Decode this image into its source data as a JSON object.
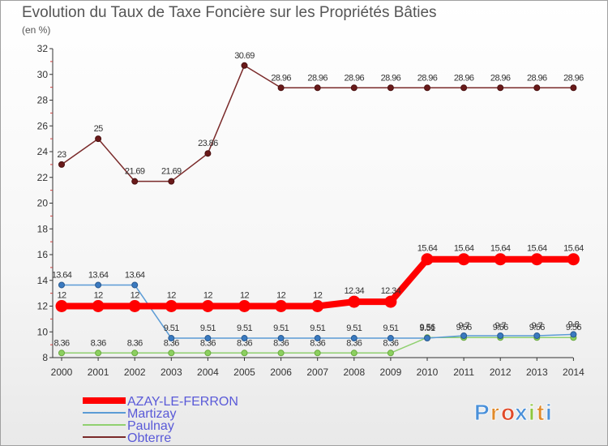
{
  "chart_data": {
    "type": "line",
    "title": "Evolution du Taux de Taxe Foncière sur les Propriétés Bâties",
    "subtitle": "(en %)",
    "xlabel": "",
    "ylabel": "",
    "ylim": [
      8,
      32
    ],
    "yticks": [
      "8",
      "10",
      "12",
      "14",
      "16",
      "18",
      "20",
      "22",
      "24",
      "26",
      "28",
      "30",
      "32"
    ],
    "grid": false,
    "legend_position": "bottom-left",
    "categories": [
      "2000",
      "2001",
      "2002",
      "2003",
      "2004",
      "2005",
      "2006",
      "2007",
      "2008",
      "2009",
      "2010",
      "2011",
      "2012",
      "2013",
      "2014"
    ],
    "series": [
      {
        "name": "AZAY-LE-FERRON",
        "color": "#ff0000",
        "values": [
          12,
          12,
          12,
          12,
          12,
          12,
          12,
          12,
          12.34,
          12.34,
          15.64,
          15.64,
          15.64,
          15.64,
          15.64
        ],
        "labels": [
          "12",
          "12",
          "12",
          "12",
          "12",
          "12",
          "12",
          "12",
          "12.34",
          "12.34",
          "15.64",
          "15.64",
          "15.64",
          "15.64",
          "15.64"
        ]
      },
      {
        "name": "Martizay",
        "color": "#5b9bd5",
        "values": [
          13.64,
          13.64,
          13.64,
          9.51,
          9.51,
          9.51,
          9.51,
          9.51,
          9.51,
          9.51,
          9.51,
          9.7,
          9.7,
          9.7,
          9.8
        ],
        "labels": [
          "13.64",
          "13.64",
          "13.64",
          "9.51",
          "9.51",
          "9.51",
          "9.51",
          "9.51",
          "9.51",
          "9.51",
          "9.51",
          "9.7",
          "9.7",
          "9.7",
          "9.8"
        ]
      },
      {
        "name": "Paulnay",
        "color": "#90d070",
        "values": [
          8.36,
          8.36,
          8.36,
          8.36,
          8.36,
          8.36,
          8.36,
          8.36,
          8.36,
          8.36,
          9.56,
          9.56,
          9.56,
          9.56,
          9.56
        ],
        "labels": [
          "8.36",
          "8.36",
          "8.36",
          "8.36",
          "8.36",
          "8.36",
          "8.36",
          "8.36",
          "8.36",
          "8.36",
          "9.56",
          "9.56",
          "9.56",
          "9.56",
          "9.56"
        ]
      },
      {
        "name": "Obterre",
        "color": "#7a2a2a",
        "values": [
          23,
          25,
          21.69,
          21.69,
          23.86,
          30.69,
          28.96,
          28.96,
          28.96,
          28.96,
          28.96,
          28.96,
          28.96,
          28.96,
          28.96
        ],
        "labels": [
          "23",
          "25",
          "21.69",
          "21.69",
          "23.86",
          "30.69",
          "28.96",
          "28.96",
          "28.96",
          "28.96",
          "28.96",
          "28.96",
          "28.96",
          "28.96",
          "28.96"
        ]
      }
    ]
  },
  "logo": {
    "letters": [
      "P",
      "r",
      "o",
      "x",
      "i",
      "t",
      "i"
    ],
    "colors": [
      "#4a90d9",
      "#e08a2a",
      "#e04a2a",
      "#4a90d9",
      "#8cc63f",
      "#e08a2a",
      "#4a90d9"
    ]
  }
}
